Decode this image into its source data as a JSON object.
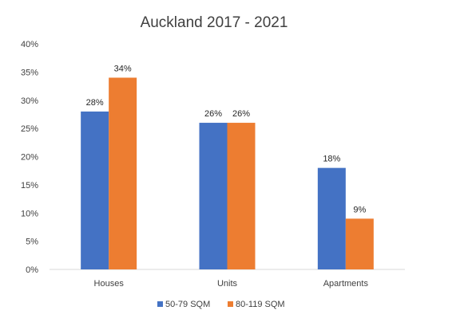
{
  "chart_data": {
    "type": "bar",
    "title": "Auckland 2017 - 2021",
    "categories": [
      "Houses",
      "Units",
      "Apartments"
    ],
    "series": [
      {
        "name": "50-79 SQM",
        "values": [
          28,
          26,
          18
        ],
        "labels": [
          "28%",
          "26%",
          "18%"
        ],
        "color": "#4472C4"
      },
      {
        "name": "80-119 SQM",
        "values": [
          34,
          26,
          9
        ],
        "labels": [
          "34%",
          "26%",
          "9%"
        ],
        "color": "#ED7D31"
      }
    ],
    "ylim": [
      0,
      40
    ],
    "y_ticks": [
      0,
      5,
      10,
      15,
      20,
      25,
      30,
      35,
      40
    ],
    "y_tick_labels": [
      "0%",
      "5%",
      "10%",
      "15%",
      "20%",
      "25%",
      "30%",
      "35%",
      "40%"
    ],
    "xlabel": "",
    "ylabel": "",
    "grid": false,
    "legend_position": "bottom"
  }
}
